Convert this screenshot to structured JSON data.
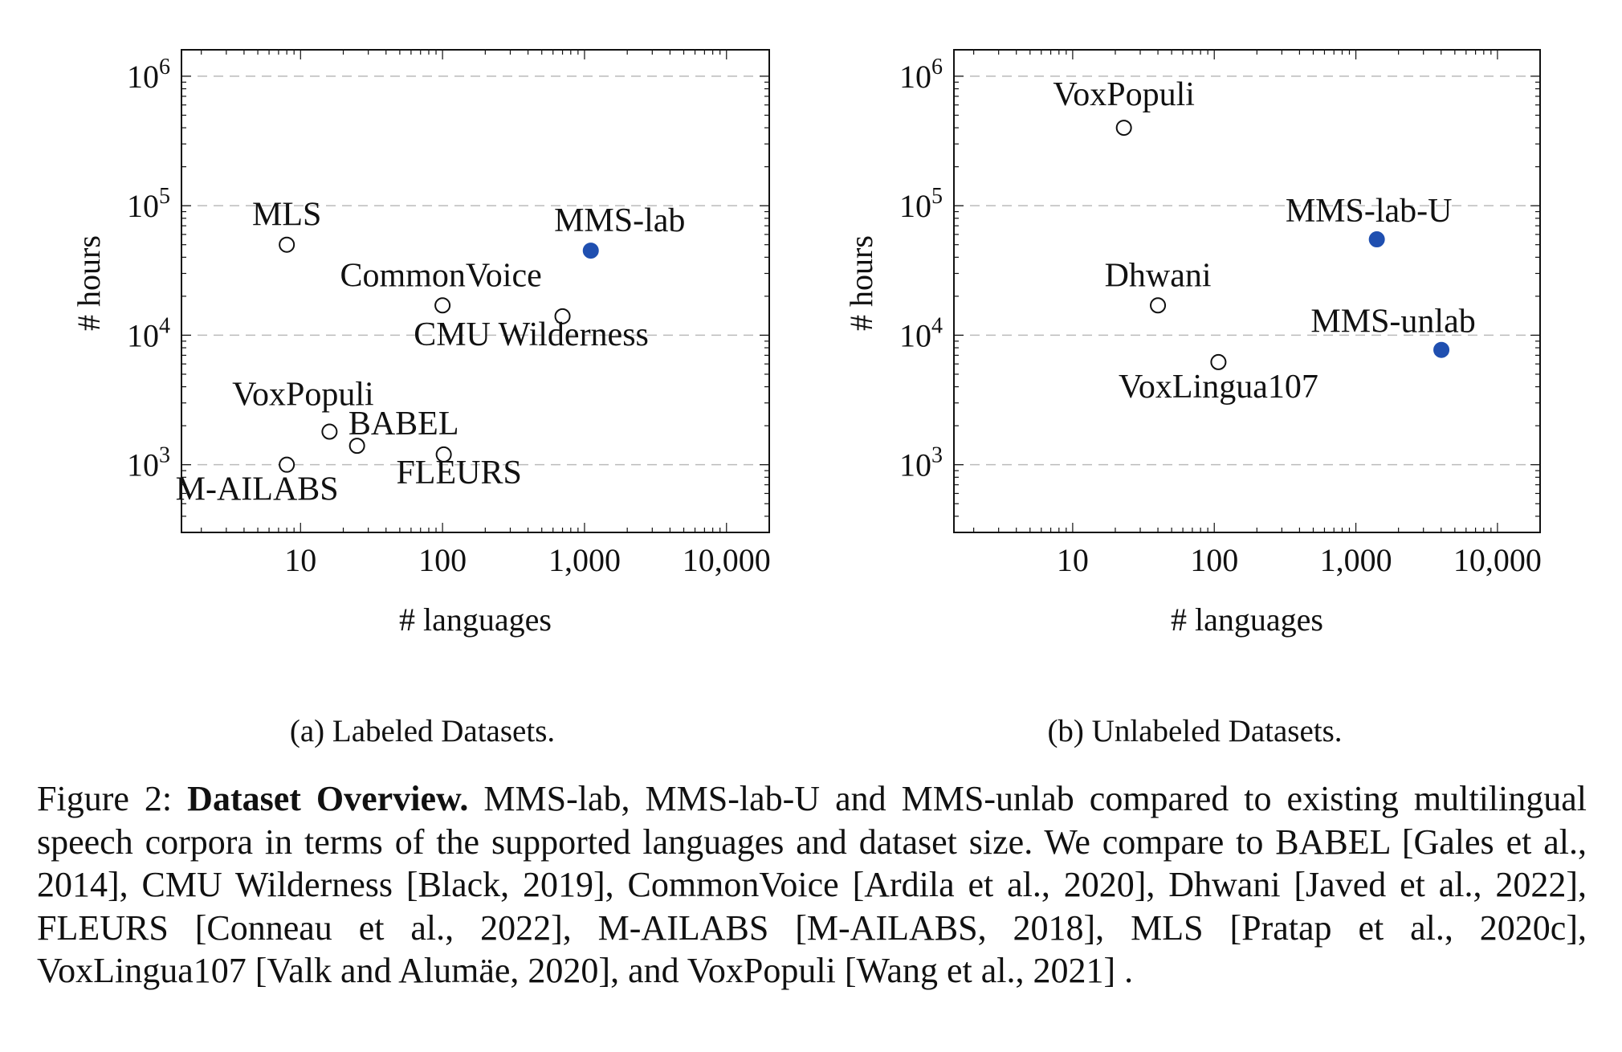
{
  "chart_data": [
    {
      "type": "scatter",
      "id": "labeled",
      "xscale": "log",
      "yscale": "log",
      "xlim": [
        1.45,
        20000
      ],
      "ylim": [
        300,
        1600000
      ],
      "xticks": [
        10,
        100,
        1000,
        10000
      ],
      "xtick_labels": [
        "10",
        "100",
        "1,000",
        "10,000"
      ],
      "yticks": [
        1000,
        10000,
        100000,
        1000000
      ],
      "ytick_labels": [
        [
          "10",
          "3"
        ],
        [
          "10",
          "4"
        ],
        [
          "10",
          "5"
        ],
        [
          "10",
          "6"
        ]
      ],
      "xlabel": "# languages",
      "ylabel": "# hours",
      "grid": "horizontal dashed",
      "points": [
        {
          "label": "MLS",
          "x": 8,
          "y": 50000,
          "filled": false,
          "anchor": "middle",
          "dx": 0,
          "dy": -24
        },
        {
          "label": "MMS-lab",
          "x": 1107,
          "y": 45000,
          "filled": true,
          "anchor": "middle",
          "dx": 36,
          "dy": -24
        },
        {
          "label": "CommonVoice",
          "x": 100,
          "y": 17000,
          "filled": false,
          "anchor": "middle",
          "dx": -2,
          "dy": -24
        },
        {
          "label": "CMU Wilderness",
          "x": 700,
          "y": 14000,
          "filled": false,
          "anchor": "middle",
          "dx": -39,
          "dy": 36
        },
        {
          "label": "VoxPopuli",
          "x": 16,
          "y": 1800,
          "filled": false,
          "anchor": "middle",
          "dx": -33,
          "dy": -33
        },
        {
          "label": "BABEL",
          "x": 25,
          "y": 1400,
          "filled": false,
          "anchor": "middle",
          "dx": 58,
          "dy": -14
        },
        {
          "label": "M-AILABS",
          "x": 8,
          "y": 1000,
          "filled": false,
          "anchor": "middle",
          "dx": -37,
          "dy": 44
        },
        {
          "label": "FLEURS",
          "x": 102,
          "y": 1200,
          "filled": false,
          "anchor": "middle",
          "dx": 19,
          "dy": 36
        }
      ]
    },
    {
      "type": "scatter",
      "id": "unlabeled",
      "xscale": "log",
      "yscale": "log",
      "xlim": [
        1.45,
        20000
      ],
      "ylim": [
        300,
        1600000
      ],
      "xticks": [
        10,
        100,
        1000,
        10000
      ],
      "xtick_labels": [
        "10",
        "100",
        "1,000",
        "10,000"
      ],
      "yticks": [
        1000,
        10000,
        100000,
        1000000
      ],
      "ytick_labels": [
        [
          "10",
          "3"
        ],
        [
          "10",
          "4"
        ],
        [
          "10",
          "5"
        ],
        [
          "10",
          "6"
        ]
      ],
      "xlabel": "# languages",
      "ylabel": "# hours",
      "grid": "horizontal dashed",
      "points": [
        {
          "label": "VoxPopuli",
          "x": 23,
          "y": 400000,
          "filled": false,
          "anchor": "middle",
          "dx": 0,
          "dy": -28
        },
        {
          "label": "MMS-lab-U",
          "x": 1406,
          "y": 55000,
          "filled": true,
          "anchor": "middle",
          "dx": -10,
          "dy": -22
        },
        {
          "label": "Dhwani",
          "x": 40,
          "y": 17000,
          "filled": false,
          "anchor": "middle",
          "dx": 0,
          "dy": -24
        },
        {
          "label": "MMS-unlab",
          "x": 4017,
          "y": 7700,
          "filled": true,
          "anchor": "middle",
          "dx": -60,
          "dy": -22
        },
        {
          "label": "VoxLingua107",
          "x": 107,
          "y": 6200,
          "filled": false,
          "anchor": "middle",
          "dx": 0,
          "dy": 44
        }
      ]
    }
  ],
  "subcaptions": {
    "a": "(a) Labeled Datasets.",
    "b": "(b) Unlabeled Datasets."
  },
  "caption": {
    "prefix": "Figure 2: ",
    "bold": "Dataset Overview.",
    "body": " MMS-lab, MMS-lab-U and MMS-unlab compared to existing multilingual speech corpora in terms of the supported languages and dataset size.  We compare to BABEL [Gales et al., 2014], CMU Wilderness [Black, 2019], CommonVoice [Ardila et al., 2020], Dhwani [Javed et al., 2022], FLEURS [Conneau et al., 2022], M-AILABS [M-AILABS, 2018], MLS [Pratap et al., 2020c], VoxLingua107 [Valk and Alumäe, 2020], and VoxPopuli [Wang et al., 2021] ."
  },
  "colors": {
    "filled_marker": "#1f4fb0",
    "grid": "#bbbbbb",
    "axis": "#111111"
  }
}
